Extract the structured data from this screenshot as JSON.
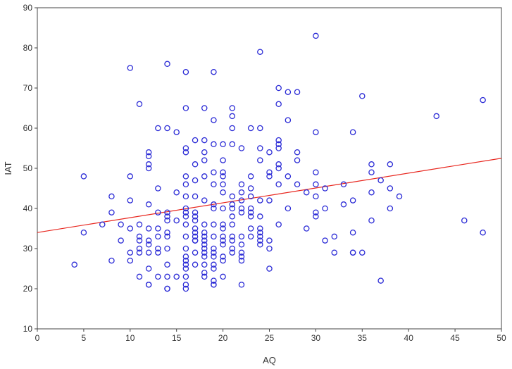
{
  "colors": {
    "points": "#2b2bd6",
    "fit_line": "#e8261e",
    "axis": "#444444",
    "background": "#ffffff"
  },
  "chart_data": {
    "type": "scatter",
    "xlabel": "AQ",
    "ylabel": "IAT",
    "xlim": [
      0,
      50
    ],
    "ylim": [
      10,
      90
    ],
    "x_ticks": [
      0,
      5,
      10,
      15,
      20,
      25,
      30,
      35,
      40,
      45,
      50
    ],
    "y_ticks": [
      10,
      20,
      30,
      40,
      50,
      60,
      70,
      80,
      90
    ],
    "grid": false,
    "fit_line": {
      "x": [
        0,
        50
      ],
      "y": [
        34,
        52.5
      ]
    },
    "series": [
      {
        "x": [
          4,
          5,
          5,
          7,
          8,
          8,
          8,
          9,
          9,
          10,
          10,
          10,
          10,
          10,
          10,
          11,
          11,
          11,
          11,
          11,
          11,
          11,
          12,
          12,
          12,
          12,
          12,
          12,
          12,
          12,
          12,
          12,
          12,
          12,
          13,
          13,
          13,
          13,
          13,
          13,
          13,
          13,
          14,
          14,
          14,
          14,
          14,
          14,
          14,
          14,
          14,
          14,
          14,
          14,
          15,
          15,
          15,
          15,
          16,
          16,
          16,
          16,
          16,
          16,
          16,
          16,
          16,
          16,
          16,
          16,
          16,
          16,
          16,
          16,
          16,
          16,
          16,
          16,
          17,
          17,
          17,
          17,
          17,
          17,
          17,
          17,
          17,
          17,
          17,
          17,
          17,
          17,
          18,
          18,
          18,
          18,
          18,
          18,
          18,
          18,
          18,
          18,
          18,
          18,
          18,
          18,
          18,
          18,
          18,
          19,
          19,
          19,
          19,
          19,
          19,
          19,
          19,
          19,
          19,
          19,
          19,
          19,
          19,
          19,
          19,
          19,
          20,
          20,
          20,
          20,
          20,
          20,
          20,
          20,
          20,
          20,
          20,
          20,
          20,
          20,
          20,
          21,
          21,
          21,
          21,
          21,
          21,
          21,
          21,
          21,
          21,
          21,
          21,
          21,
          22,
          22,
          22,
          22,
          22,
          22,
          22,
          22,
          22,
          22,
          22,
          22,
          23,
          23,
          23,
          23,
          23,
          23,
          23,
          23,
          23,
          24,
          24,
          24,
          24,
          24,
          24,
          24,
          24,
          24,
          24,
          24,
          25,
          25,
          25,
          25,
          25,
          25,
          25,
          26,
          26,
          26,
          26,
          26,
          26,
          26,
          26,
          26,
          27,
          27,
          27,
          27,
          28,
          28,
          28,
          28,
          29,
          29,
          30,
          30,
          30,
          30,
          30,
          30,
          30,
          31,
          31,
          31,
          32,
          32,
          33,
          33,
          34,
          34,
          34,
          34,
          34,
          35,
          35,
          36,
          36,
          36,
          36,
          37,
          37,
          38,
          38,
          38,
          39,
          43,
          46,
          48,
          48
        ],
        "y": [
          26,
          48,
          34,
          36,
          43,
          39,
          27,
          36,
          32,
          75,
          48,
          42,
          35,
          29,
          27,
          66,
          36,
          33,
          32,
          30,
          29,
          23,
          54,
          53,
          51,
          50,
          41,
          35,
          32,
          31,
          29,
          25,
          21,
          21,
          60,
          45,
          39,
          35,
          33,
          30,
          29,
          23,
          76,
          60,
          39,
          38,
          37,
          34,
          33,
          30,
          26,
          23,
          20,
          20,
          59,
          44,
          37,
          23,
          74,
          65,
          55,
          54,
          48,
          46,
          43,
          40,
          39,
          38,
          36,
          33,
          30,
          28,
          27,
          26,
          25,
          23,
          21,
          20,
          57,
          51,
          47,
          43,
          39,
          38,
          37,
          35,
          34,
          33,
          32,
          32,
          29,
          26,
          65,
          57,
          54,
          52,
          48,
          42,
          36,
          34,
          33,
          32,
          31,
          30,
          29,
          28,
          26,
          24,
          23,
          74,
          62,
          56,
          49,
          46,
          41,
          40,
          36,
          33,
          30,
          29,
          28,
          26,
          25,
          22,
          21,
          21,
          56,
          52,
          49,
          48,
          46,
          44,
          40,
          36,
          35,
          33,
          32,
          31,
          28,
          27,
          23,
          65,
          63,
          60,
          56,
          43,
          41,
          40,
          38,
          36,
          33,
          32,
          30,
          29,
          55,
          46,
          44,
          42,
          40,
          39,
          33,
          31,
          29,
          28,
          27,
          21,
          60,
          48,
          45,
          43,
          40,
          39,
          38,
          35,
          33,
          79,
          60,
          55,
          52,
          42,
          38,
          35,
          34,
          33,
          32,
          31,
          54,
          49,
          48,
          42,
          32,
          30,
          25,
          70,
          66,
          57,
          56,
          55,
          51,
          50,
          46,
          36,
          69,
          62,
          48,
          40,
          69,
          54,
          52,
          46,
          44,
          35,
          83,
          59,
          49,
          46,
          43,
          39,
          38,
          45,
          40,
          32,
          33,
          29,
          46,
          41,
          59,
          42,
          34,
          29,
          29,
          68,
          29,
          51,
          49,
          44,
          37,
          47,
          22,
          51,
          45,
          40,
          43,
          63,
          37,
          67,
          34
        ]
      }
    ]
  }
}
